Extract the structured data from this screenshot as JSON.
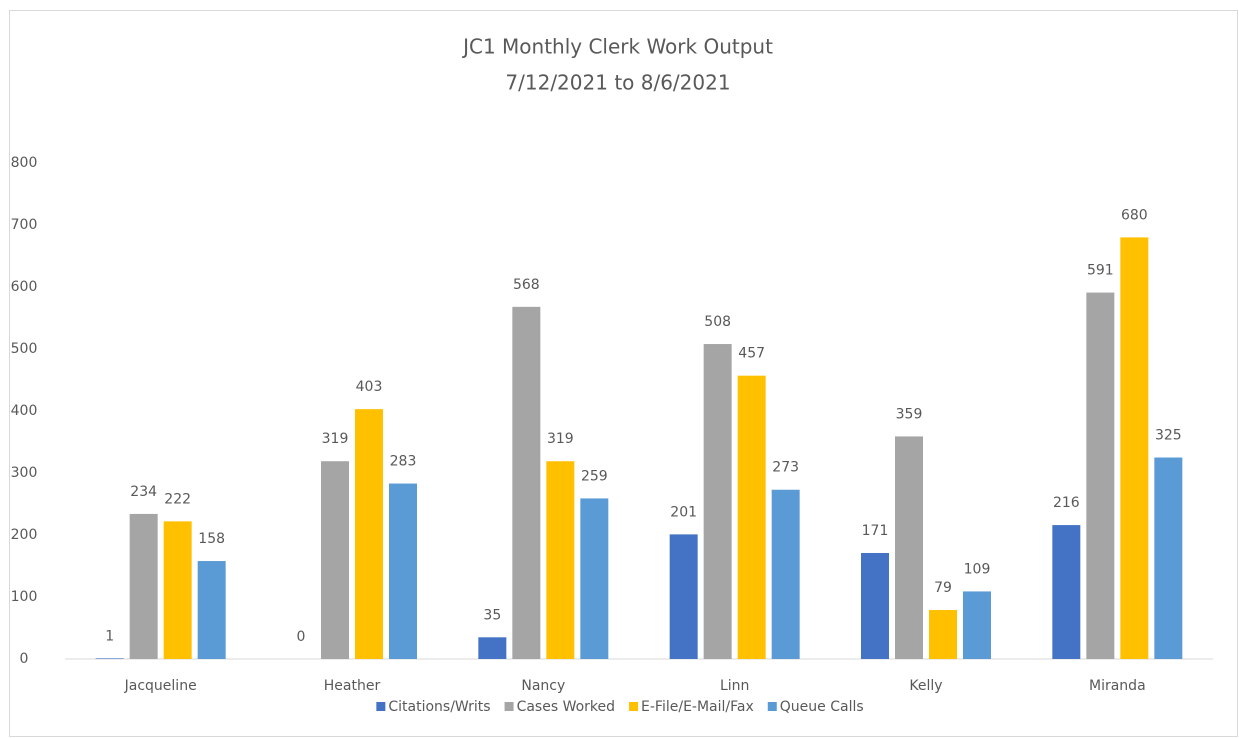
{
  "chart_data": {
    "type": "bar",
    "title": "JC1  Monthly Clerk Work Output",
    "subtitle": "7/12/2021 to 8/6/2021",
    "categories": [
      "Jacqueline",
      "Heather",
      "Nancy",
      "Linn",
      "Kelly",
      "Miranda"
    ],
    "series": [
      {
        "name": "Citations/Writs",
        "color": "#4472c4",
        "values": [
          1,
          0,
          35,
          201,
          171,
          216
        ]
      },
      {
        "name": "Cases Worked",
        "color": "#a5a5a5",
        "values": [
          234,
          319,
          568,
          508,
          359,
          591
        ]
      },
      {
        "name": "E-File/E-Mail/Fax",
        "color": "#ffc000",
        "values": [
          222,
          403,
          319,
          457,
          79,
          680
        ]
      },
      {
        "name": "Queue Calls",
        "color": "#5b9bd5",
        "values": [
          158,
          283,
          259,
          273,
          109,
          325
        ]
      }
    ],
    "ylim": [
      0,
      800
    ],
    "yticks": [
      0,
      100,
      200,
      300,
      400,
      500,
      600,
      700,
      800
    ],
    "grid": false,
    "legend": "bottom"
  }
}
